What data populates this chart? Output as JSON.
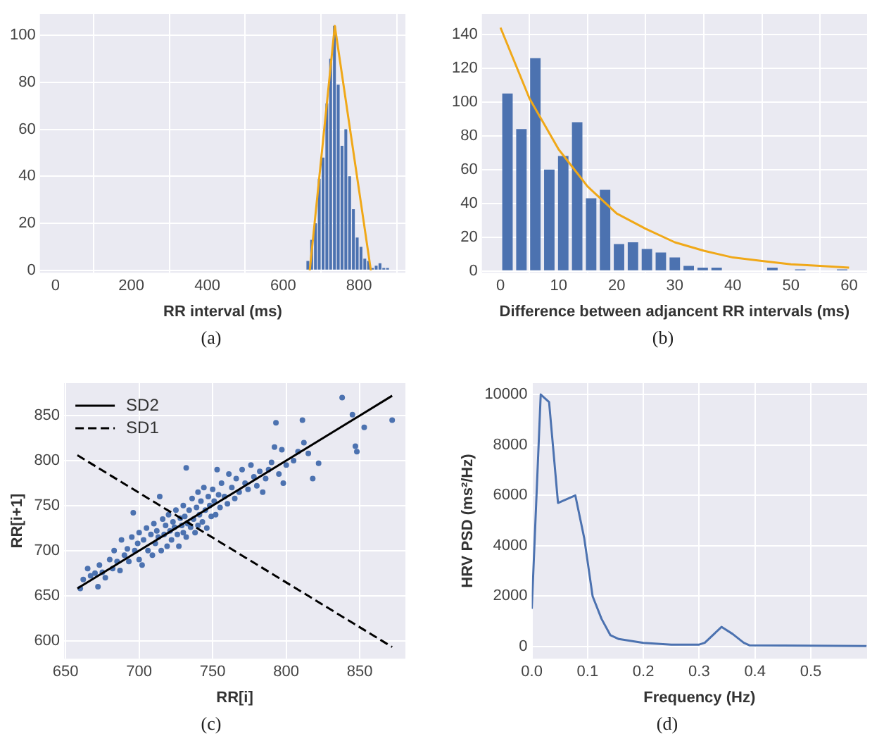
{
  "chart_data": [
    {
      "type": "histogram",
      "xlabel": "RR interval (ms)",
      "annotations": [
        "(a)"
      ],
      "bins": [
        660,
        670,
        680,
        690,
        700,
        710,
        720,
        730,
        740,
        750,
        760,
        770,
        780,
        790,
        800,
        810,
        820,
        830,
        840,
        850,
        860,
        870,
        880
      ],
      "values": [
        4,
        13,
        20,
        39,
        48,
        71,
        90,
        104,
        79,
        53,
        60,
        40,
        26,
        14,
        10,
        5,
        4,
        1,
        2,
        3,
        1,
        1
      ],
      "color": "#4c72b0",
      "series": [
        {
          "type": "line",
          "x": [
            670,
            736,
            831
          ],
          "values": [
            0,
            104,
            0
          ],
          "color": "#f0a818"
        }
      ],
      "xlim": [
        -41,
        922
      ],
      "xticks": [
        0,
        200,
        400,
        600,
        800
      ],
      "ylim": [
        -1,
        109
      ],
      "yticks": [
        0,
        20,
        40,
        60,
        80,
        100
      ],
      "grid": true
    },
    {
      "type": "histogram",
      "xlabel": "Difference between adjancent RR intervals (ms)",
      "annotations": [
        "(b)"
      ],
      "bins": [
        0,
        2.4,
        4.8,
        7.2,
        9.6,
        12,
        14.4,
        16.8,
        19.2,
        21.6,
        24,
        26.4,
        28.8,
        31.2,
        33.6,
        36,
        38.4,
        40.8,
        43.2,
        45.6,
        48,
        50.4,
        52.8,
        55.2,
        57.6,
        60
      ],
      "values": [
        105,
        84,
        126,
        60,
        68,
        88,
        43,
        48,
        16,
        17,
        13,
        11,
        8,
        3,
        2,
        2,
        0,
        0,
        0,
        2,
        0,
        1,
        0,
        0,
        1
      ],
      "color": "#4c72b0",
      "series": [
        {
          "type": "line",
          "x": [
            0,
            5,
            10,
            15,
            20,
            25,
            30,
            35,
            40,
            45,
            50,
            55,
            60
          ],
          "values": [
            144,
            102,
            72,
            50,
            34,
            25,
            17,
            12,
            8,
            6,
            4,
            3,
            2
          ],
          "color": "#f0a818"
        }
      ],
      "xlim": [
        -3.2,
        63.1
      ],
      "xticks": [
        0,
        10,
        20,
        30,
        40,
        50,
        60
      ],
      "ylim": [
        -1,
        152
      ],
      "yticks": [
        0,
        20,
        40,
        60,
        80,
        100,
        120,
        140
      ],
      "grid": true
    },
    {
      "type": "scatter",
      "xlabel": "RR[i]",
      "ylabel": "RR[i+1]",
      "annotations": [
        "(c)"
      ],
      "legend": "top left",
      "series": [
        {
          "type": "scatter",
          "marker": "circle",
          "color": "#4c72b0",
          "x": [
            660,
            662,
            665,
            667,
            670,
            672,
            673,
            675,
            677,
            680,
            682,
            683,
            685,
            687,
            688,
            690,
            692,
            693,
            695,
            696,
            697,
            699,
            700,
            700,
            702,
            703,
            705,
            706,
            708,
            709,
            710,
            711,
            712,
            713,
            714,
            715,
            716,
            717,
            718,
            719,
            720,
            721,
            722,
            723,
            724,
            725,
            726,
            727,
            728,
            729,
            730,
            730,
            731,
            732,
            732,
            733,
            734,
            735,
            736,
            737,
            738,
            739,
            740,
            740,
            741,
            742,
            743,
            744,
            745,
            746,
            747,
            748,
            749,
            750,
            751,
            752,
            753,
            754,
            755,
            756,
            758,
            760,
            761,
            763,
            765,
            766,
            768,
            770,
            772,
            774,
            776,
            778,
            780,
            782,
            784,
            786,
            788,
            790,
            792,
            793,
            795,
            797,
            798,
            800,
            805,
            808,
            811,
            812,
            815,
            818,
            822,
            838,
            845,
            847,
            848,
            853,
            872
          ],
          "values": [
            658,
            668,
            680,
            672,
            675,
            660,
            684,
            676,
            670,
            690,
            680,
            700,
            688,
            678,
            712,
            695,
            702,
            688,
            715,
            742,
            700,
            708,
            690,
            720,
            684,
            712,
            725,
            700,
            718,
            695,
            730,
            708,
            722,
            715,
            760,
            700,
            735,
            718,
            728,
            705,
            740,
            722,
            712,
            732,
            726,
            745,
            718,
            705,
            736,
            728,
            750,
            720,
            738,
            792,
            715,
            730,
            745,
            726,
            758,
            735,
            720,
            748,
            765,
            728,
            740,
            755,
            732,
            770,
            745,
            725,
            760,
            750,
            738,
            768,
            755,
            740,
            790,
            762,
            748,
            775,
            760,
            752,
            785,
            770,
            758,
            780,
            765,
            790,
            775,
            768,
            795,
            782,
            772,
            788,
            765,
            780,
            790,
            798,
            815,
            842,
            785,
            812,
            775,
            795,
            800,
            810,
            845,
            820,
            808,
            780,
            797,
            870,
            851,
            816,
            810,
            837,
            845
          ]
        },
        {
          "type": "line",
          "name": "SD2",
          "color": "#000000",
          "line_style": "solid",
          "x": [
            658,
            872
          ],
          "values": [
            658,
            872
          ]
        },
        {
          "type": "line",
          "name": "SD1",
          "color": "#000000",
          "line_style": "dashed",
          "x": [
            658,
            872
          ],
          "values": [
            806,
            593
          ]
        }
      ],
      "xlim": [
        649,
        881
      ],
      "xticks": [
        650,
        700,
        750,
        800,
        850
      ],
      "ylim": [
        580,
        886
      ],
      "yticks": [
        600,
        650,
        700,
        750,
        800,
        850
      ],
      "grid": true
    },
    {
      "type": "line",
      "xlabel": "Frequency (Hz)",
      "ylabel": "HRV PSD (ms²/Hz)",
      "annotations": [
        "(d)"
      ],
      "series": [
        {
          "color": "#4c72b0",
          "x": [
            0,
            0.016,
            0.031,
            0.047,
            0.078,
            0.094,
            0.109,
            0.125,
            0.141,
            0.156,
            0.2,
            0.25,
            0.3,
            0.31,
            0.34,
            0.36,
            0.38,
            0.39,
            0.45,
            0.6
          ],
          "values": [
            1500,
            10000,
            9700,
            5700,
            6000,
            4300,
            2000,
            1100,
            450,
            300,
            150,
            80,
            80,
            150,
            780,
            500,
            150,
            50,
            40,
            20
          ]
        }
      ],
      "xlim": [
        0,
        0.601
      ],
      "xticks": [
        {
          "value": 0,
          "label": "0.0"
        },
        0.1,
        0.2,
        0.3,
        0.4,
        0.5
      ],
      "ylim": [
        -480,
        10450
      ],
      "yticks": [
        0,
        2000,
        4000,
        6000,
        8000,
        10000
      ],
      "grid": true
    }
  ]
}
